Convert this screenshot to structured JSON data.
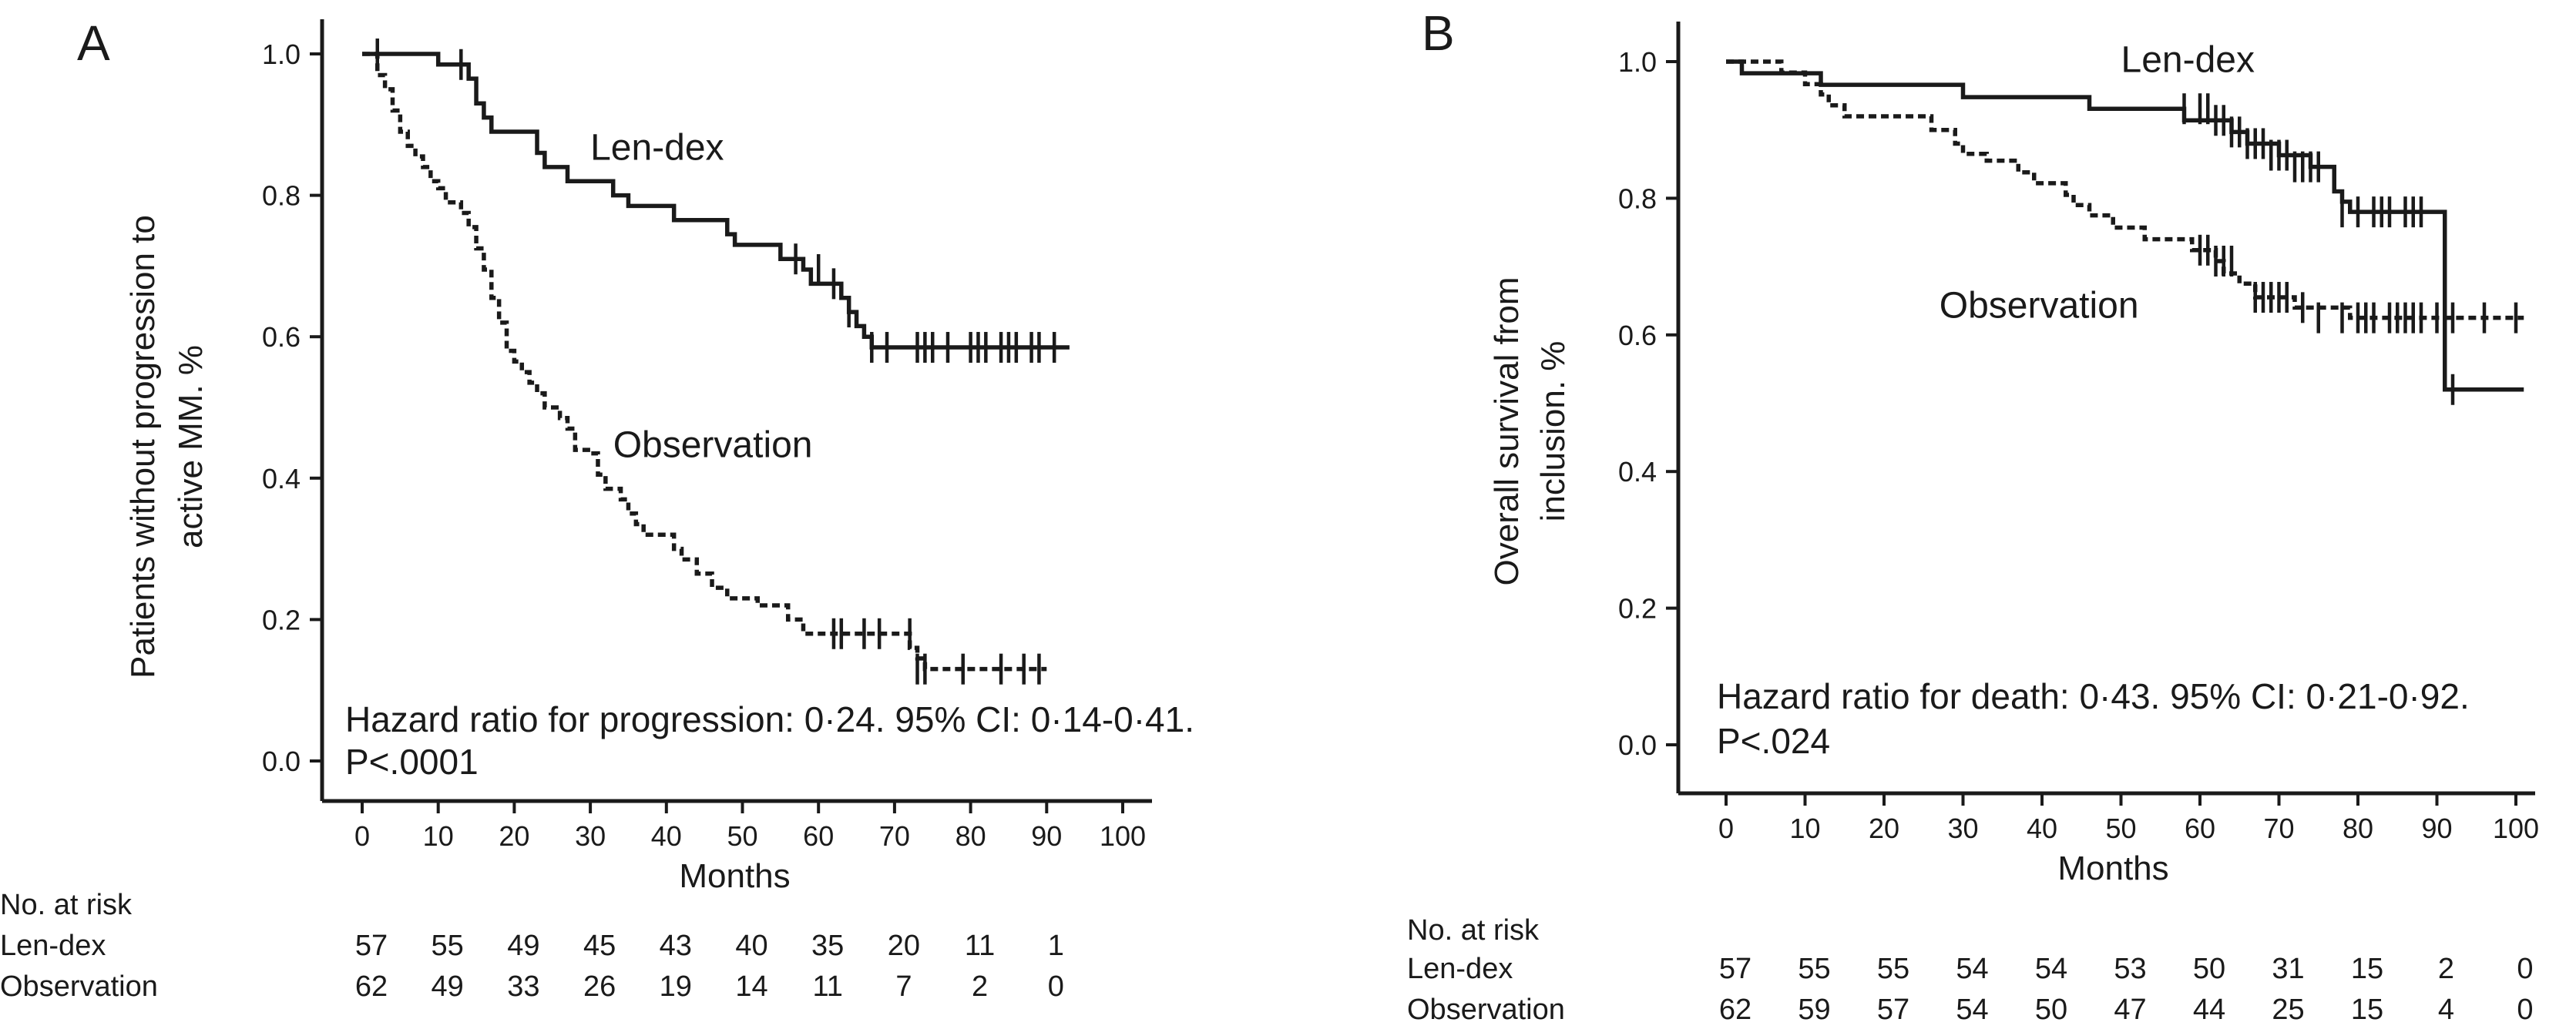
{
  "chart_data": [
    {
      "type": "line",
      "panel_label": "A",
      "xlabel": "Months",
      "ylabel_lines": [
        "Patients without progression to",
        "active MM. %"
      ],
      "xlim": [
        0,
        100
      ],
      "ylim": [
        0,
        1
      ],
      "x_ticks": [
        "0",
        "10",
        "20",
        "30",
        "40",
        "50",
        "60",
        "70",
        "80",
        "90",
        "100"
      ],
      "y_ticks": [
        "0.0",
        "0.2",
        "0.4",
        "0.6",
        "0.8",
        "1.0"
      ],
      "series": [
        {
          "name": "Len-dex",
          "style": "solid",
          "steps": [
            [
              0,
              1.0
            ],
            [
              10,
              0.985
            ],
            [
              14,
              0.965
            ],
            [
              15,
              0.93
            ],
            [
              16,
              0.91
            ],
            [
              17,
              0.89
            ],
            [
              23,
              0.86
            ],
            [
              24,
              0.84
            ],
            [
              27,
              0.82
            ],
            [
              33,
              0.8
            ],
            [
              35,
              0.785
            ],
            [
              41,
              0.765
            ],
            [
              48,
              0.745
            ],
            [
              49,
              0.73
            ],
            [
              55,
              0.71
            ],
            [
              58,
              0.695
            ],
            [
              59,
              0.675
            ],
            [
              63,
              0.655
            ],
            [
              64,
              0.635
            ],
            [
              65,
              0.615
            ],
            [
              66,
              0.6
            ],
            [
              67,
              0.585
            ],
            [
              93,
              0.585
            ]
          ],
          "censored": [
            [
              2,
              1.0
            ],
            [
              13,
              0.985
            ],
            [
              57,
              0.71
            ],
            [
              60,
              0.695
            ],
            [
              62,
              0.675
            ],
            [
              64,
              0.635
            ],
            [
              67,
              0.585
            ],
            [
              69,
              0.585
            ],
            [
              73,
              0.585
            ],
            [
              74,
              0.585
            ],
            [
              75,
              0.585
            ],
            [
              77,
              0.585
            ],
            [
              80,
              0.585
            ],
            [
              81,
              0.585
            ],
            [
              82,
              0.585
            ],
            [
              84,
              0.585
            ],
            [
              85,
              0.585
            ],
            [
              86,
              0.585
            ],
            [
              88,
              0.585
            ],
            [
              89,
              0.585
            ],
            [
              91,
              0.585
            ]
          ]
        },
        {
          "name": "Observation",
          "style": "dashed",
          "steps": [
            [
              0,
              1.0
            ],
            [
              2,
              0.97
            ],
            [
              3,
              0.95
            ],
            [
              4,
              0.92
            ],
            [
              5,
              0.89
            ],
            [
              6,
              0.87
            ],
            [
              7,
              0.855
            ],
            [
              8,
              0.84
            ],
            [
              9,
              0.82
            ],
            [
              10,
              0.81
            ],
            [
              11,
              0.79
            ],
            [
              13,
              0.775
            ],
            [
              14,
              0.755
            ],
            [
              15,
              0.725
            ],
            [
              16,
              0.695
            ],
            [
              17,
              0.655
            ],
            [
              18,
              0.62
            ],
            [
              19,
              0.58
            ],
            [
              20,
              0.565
            ],
            [
              21,
              0.55
            ],
            [
              22,
              0.535
            ],
            [
              23,
              0.52
            ],
            [
              24,
              0.5
            ],
            [
              26,
              0.485
            ],
            [
              27,
              0.47
            ],
            [
              28,
              0.44
            ],
            [
              30,
              0.435
            ],
            [
              31,
              0.405
            ],
            [
              32,
              0.385
            ],
            [
              34,
              0.37
            ],
            [
              35,
              0.35
            ],
            [
              36,
              0.335
            ],
            [
              37,
              0.32
            ],
            [
              41,
              0.3
            ],
            [
              42,
              0.285
            ],
            [
              44,
              0.265
            ],
            [
              46,
              0.245
            ],
            [
              48,
              0.23
            ],
            [
              52,
              0.22
            ],
            [
              56,
              0.2
            ],
            [
              58,
              0.18
            ],
            [
              72,
              0.16
            ],
            [
              73,
              0.145
            ],
            [
              74,
              0.13
            ],
            [
              90,
              0.13
            ]
          ],
          "censored": [
            [
              62,
              0.18
            ],
            [
              63,
              0.18
            ],
            [
              66,
              0.18
            ],
            [
              68,
              0.18
            ],
            [
              72,
              0.18
            ],
            [
              73,
              0.13
            ],
            [
              74,
              0.13
            ],
            [
              79,
              0.13
            ],
            [
              84,
              0.13
            ],
            [
              87,
              0.13
            ],
            [
              89,
              0.13
            ]
          ]
        }
      ],
      "series_labels": [
        {
          "text": "Len-dex",
          "x": 30,
          "y": 0.85
        },
        {
          "text": "Observation",
          "x": 33,
          "y": 0.43
        }
      ],
      "annotation_lines": [
        "Hazard ratio for progression: 0·24. 95% CI: 0·14-0·41.",
        "P<.0001"
      ],
      "risk_table": {
        "header": "No. at risk",
        "rows": [
          {
            "label": "Len-dex",
            "values": [
              "57",
              "55",
              "49",
              "45",
              "43",
              "40",
              "35",
              "20",
              "11",
              "1"
            ]
          },
          {
            "label": "Observation",
            "values": [
              "62",
              "49",
              "33",
              "26",
              "19",
              "14",
              "11",
              "7",
              "2",
              "0"
            ]
          }
        ]
      }
    },
    {
      "type": "line",
      "panel_label": "B",
      "xlabel": "Months",
      "ylabel_lines": [
        "Overall survival from",
        "inclusion. %"
      ],
      "xlim": [
        0,
        100
      ],
      "ylim": [
        0,
        1
      ],
      "x_ticks": [
        "0",
        "10",
        "20",
        "30",
        "40",
        "50",
        "60",
        "70",
        "80",
        "90",
        "100"
      ],
      "y_ticks": [
        "0.0",
        "0.2",
        "0.4",
        "0.6",
        "0.8",
        "1.0"
      ],
      "series": [
        {
          "name": "Len-dex",
          "style": "solid",
          "steps": [
            [
              0,
              1.0
            ],
            [
              2,
              0.983
            ],
            [
              12,
              0.966
            ],
            [
              30,
              0.948
            ],
            [
              46,
              0.931
            ],
            [
              58,
              0.914
            ],
            [
              64,
              0.897
            ],
            [
              66,
              0.88
            ],
            [
              70,
              0.863
            ],
            [
              74,
              0.846
            ],
            [
              77,
              0.81
            ],
            [
              78,
              0.795
            ],
            [
              79,
              0.78
            ],
            [
              91,
              0.52
            ],
            [
              101,
              0.52
            ]
          ],
          "censored": [
            [
              58,
              0.931
            ],
            [
              60,
              0.931
            ],
            [
              61,
              0.931
            ],
            [
              62,
              0.914
            ],
            [
              63,
              0.914
            ],
            [
              64,
              0.897
            ],
            [
              65,
              0.897
            ],
            [
              66,
              0.88
            ],
            [
              67,
              0.88
            ],
            [
              68,
              0.88
            ],
            [
              69,
              0.863
            ],
            [
              70,
              0.863
            ],
            [
              71,
              0.863
            ],
            [
              72,
              0.846
            ],
            [
              73,
              0.846
            ],
            [
              74,
              0.846
            ],
            [
              75,
              0.846
            ],
            [
              78,
              0.78
            ],
            [
              80,
              0.78
            ],
            [
              82,
              0.78
            ],
            [
              83,
              0.78
            ],
            [
              84,
              0.78
            ],
            [
              86,
              0.78
            ],
            [
              87,
              0.78
            ],
            [
              88,
              0.78
            ],
            [
              92,
              0.52
            ]
          ]
        },
        {
          "name": "Observation",
          "style": "dashed",
          "steps": [
            [
              0,
              1.0
            ],
            [
              7,
              0.984
            ],
            [
              10,
              0.967
            ],
            [
              12,
              0.952
            ],
            [
              13,
              0.936
            ],
            [
              15,
              0.92
            ],
            [
              26,
              0.9
            ],
            [
              29,
              0.88
            ],
            [
              30,
              0.865
            ],
            [
              33,
              0.855
            ],
            [
              37,
              0.838
            ],
            [
              39,
              0.822
            ],
            [
              43,
              0.805
            ],
            [
              44,
              0.79
            ],
            [
              46,
              0.775
            ],
            [
              49,
              0.757
            ],
            [
              53,
              0.74
            ],
            [
              59,
              0.724
            ],
            [
              62,
              0.708
            ],
            [
              63,
              0.69
            ],
            [
              65,
              0.675
            ],
            [
              67,
              0.655
            ],
            [
              72,
              0.64
            ],
            [
              79,
              0.625
            ],
            [
              101,
              0.625
            ]
          ],
          "censored": [
            [
              60,
              0.724
            ],
            [
              61,
              0.724
            ],
            [
              62,
              0.708
            ],
            [
              63,
              0.708
            ],
            [
              64,
              0.708
            ],
            [
              67,
              0.655
            ],
            [
              68,
              0.655
            ],
            [
              69,
              0.655
            ],
            [
              70,
              0.655
            ],
            [
              71,
              0.655
            ],
            [
              73,
              0.64
            ],
            [
              75,
              0.625
            ],
            [
              78,
              0.625
            ],
            [
              80,
              0.625
            ],
            [
              81,
              0.625
            ],
            [
              82,
              0.625
            ],
            [
              84,
              0.625
            ],
            [
              85,
              0.625
            ],
            [
              86,
              0.625
            ],
            [
              87,
              0.625
            ],
            [
              88,
              0.625
            ],
            [
              90,
              0.625
            ],
            [
              92,
              0.625
            ],
            [
              96,
              0.625
            ],
            [
              100,
              0.625
            ]
          ]
        }
      ],
      "series_labels": [
        {
          "text": "Len-dex",
          "x": 50,
          "y": 0.985
        },
        {
          "text": "Observation",
          "x": 27,
          "y": 0.625
        }
      ],
      "annotation_lines": [
        "Hazard ratio for death: 0·43. 95% CI: 0·21-0·92.",
        "P<.024"
      ],
      "risk_table": {
        "header": "No. at risk",
        "rows": [
          {
            "label": "Len-dex",
            "values": [
              "57",
              "55",
              "55",
              "54",
              "54",
              "53",
              "50",
              "31",
              "15",
              "2",
              "0"
            ]
          },
          {
            "label": "Observation",
            "values": [
              "62",
              "59",
              "57",
              "54",
              "50",
              "47",
              "44",
              "25",
              "15",
              "4",
              "0"
            ]
          }
        ]
      }
    }
  ]
}
